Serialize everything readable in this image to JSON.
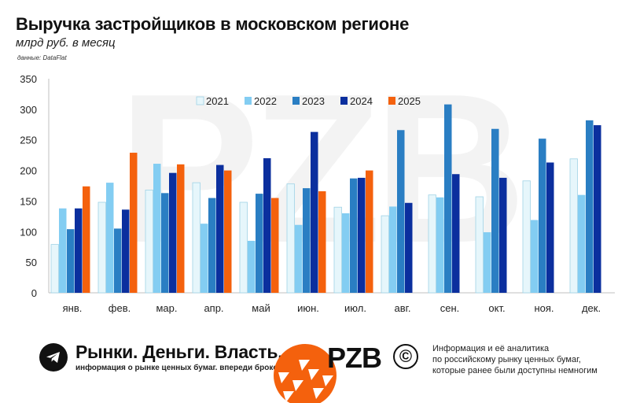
{
  "header": {
    "title": "Выручка застройщиков в московском регионе",
    "subtitle": "млрд руб. в месяц",
    "source": "данные: DataFlat"
  },
  "watermark": "PZB",
  "colors": {
    "2021": "#e6f6fb",
    "2022": "#83cdf2",
    "2023": "#2a7ec3",
    "2024": "#0b2f9e",
    "2025": "#f4610d"
  },
  "chart_data": {
    "type": "bar",
    "categories": [
      "янв.",
      "фев.",
      "мар.",
      "апр.",
      "май",
      "июн.",
      "июл.",
      "авг.",
      "сен.",
      "окт.",
      "ноя.",
      "дек."
    ],
    "series": [
      {
        "name": "2021",
        "values": [
          79,
          148,
          168,
          180,
          148,
          178,
          140,
          126,
          160,
          157,
          183,
          219
        ]
      },
      {
        "name": "2022",
        "values": [
          138,
          180,
          211,
          113,
          85,
          111,
          130,
          141,
          156,
          99,
          119,
          160
        ]
      },
      {
        "name": "2023",
        "values": [
          104,
          105,
          163,
          155,
          162,
          171,
          187,
          266,
          308,
          268,
          252,
          282
        ]
      },
      {
        "name": "2024",
        "values": [
          138,
          136,
          196,
          209,
          220,
          263,
          188,
          147,
          194,
          188,
          213,
          274
        ]
      },
      {
        "name": "2025",
        "values": [
          174,
          229,
          210,
          200,
          155,
          166,
          200,
          null,
          null,
          null,
          null,
          null
        ]
      }
    ],
    "yticks": [
      0,
      50,
      100,
      150,
      200,
      250,
      300,
      350
    ],
    "ylim": [
      0,
      350
    ],
    "legend": "top-center",
    "grid": false
  },
  "footer": {
    "brand_name": "Рынки. Деньги. Власть.",
    "tagline": "информация о рынке ценных бумаг. впереди брокеров и банков.",
    "brand_mark": "PZB",
    "copyright_symbol": "©",
    "info_lines": [
      "Информация и её аналитика",
      "по российскому рынку ценных бумаг,",
      "которые ранее были доступны немногим"
    ]
  }
}
